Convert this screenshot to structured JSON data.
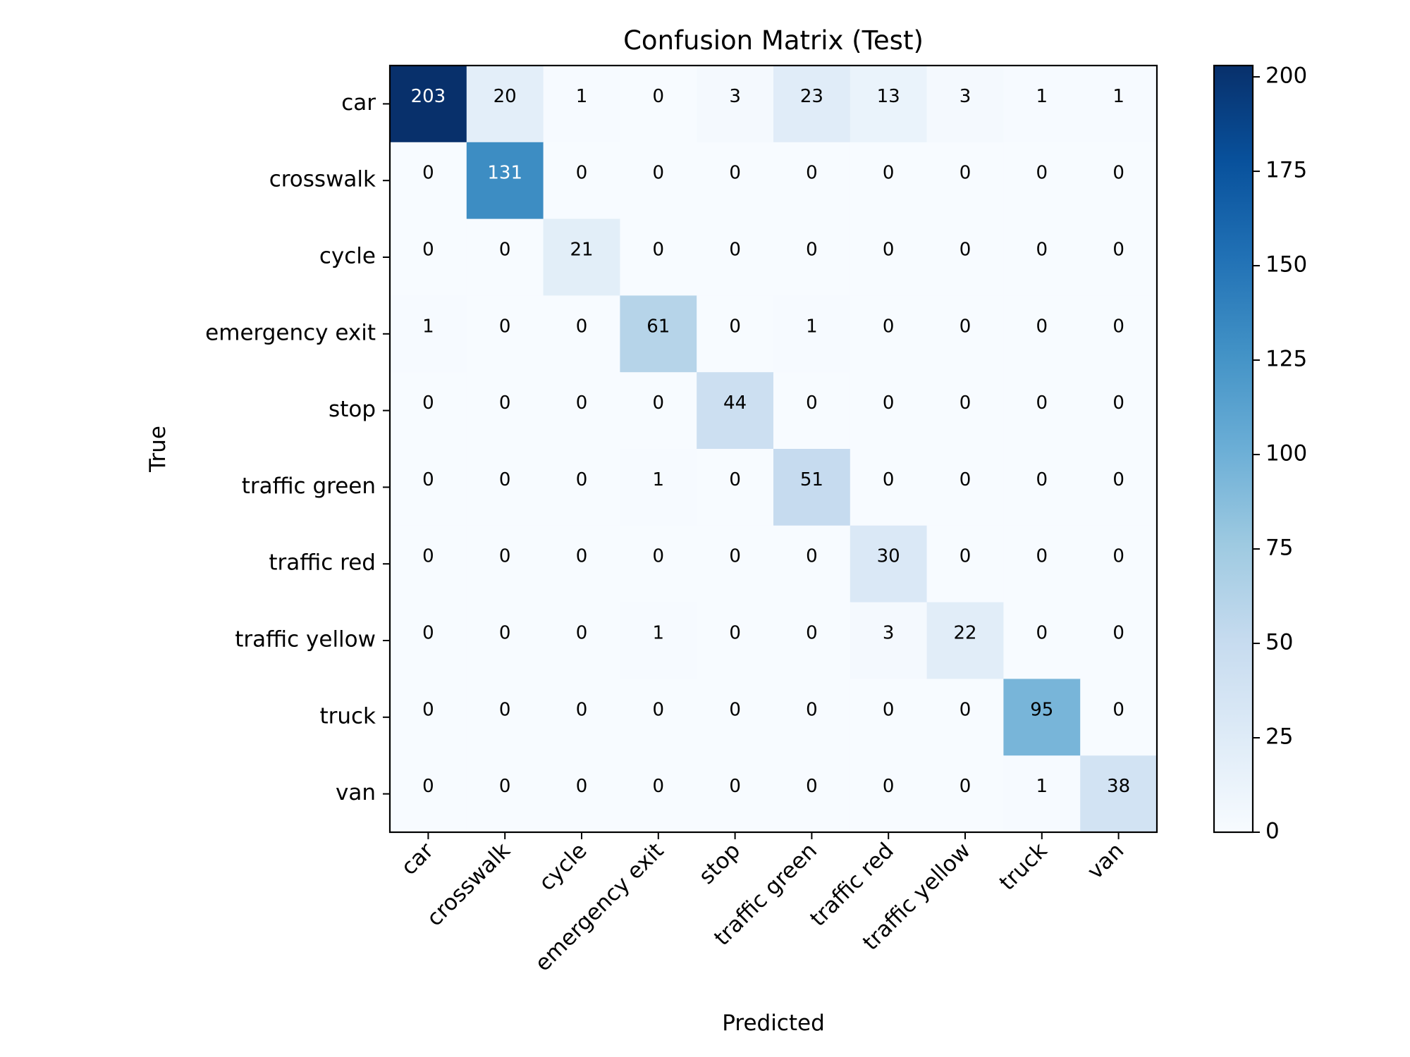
{
  "chart_data": {
    "type": "heatmap",
    "title": "Confusion Matrix (Test)",
    "xlabel": "Predicted",
    "ylabel": "True",
    "x_categories": [
      "car",
      "crosswalk",
      "cycle",
      "emergency exit",
      "stop",
      "traffic green",
      "traffic red",
      "traffic yellow",
      "truck",
      "van"
    ],
    "y_categories": [
      "car",
      "crosswalk",
      "cycle",
      "emergency exit",
      "stop",
      "traffic green",
      "traffic red",
      "traffic yellow",
      "truck",
      "van"
    ],
    "matrix": [
      [
        203,
        20,
        1,
        0,
        3,
        23,
        13,
        3,
        1,
        1
      ],
      [
        0,
        131,
        0,
        0,
        0,
        0,
        0,
        0,
        0,
        0
      ],
      [
        0,
        0,
        21,
        0,
        0,
        0,
        0,
        0,
        0,
        0
      ],
      [
        1,
        0,
        0,
        61,
        0,
        1,
        0,
        0,
        0,
        0
      ],
      [
        0,
        0,
        0,
        0,
        44,
        0,
        0,
        0,
        0,
        0
      ],
      [
        0,
        0,
        0,
        1,
        0,
        51,
        0,
        0,
        0,
        0
      ],
      [
        0,
        0,
        0,
        0,
        0,
        0,
        30,
        0,
        0,
        0
      ],
      [
        0,
        0,
        0,
        1,
        0,
        0,
        3,
        22,
        0,
        0
      ],
      [
        0,
        0,
        0,
        0,
        0,
        0,
        0,
        0,
        95,
        0
      ],
      [
        0,
        0,
        0,
        0,
        0,
        0,
        0,
        0,
        1,
        38
      ]
    ],
    "colormap": "Blues",
    "color_range": [
      0,
      203
    ],
    "colorbar_ticks": [
      0,
      25,
      50,
      75,
      100,
      125,
      150,
      175,
      200
    ],
    "grid": false
  }
}
